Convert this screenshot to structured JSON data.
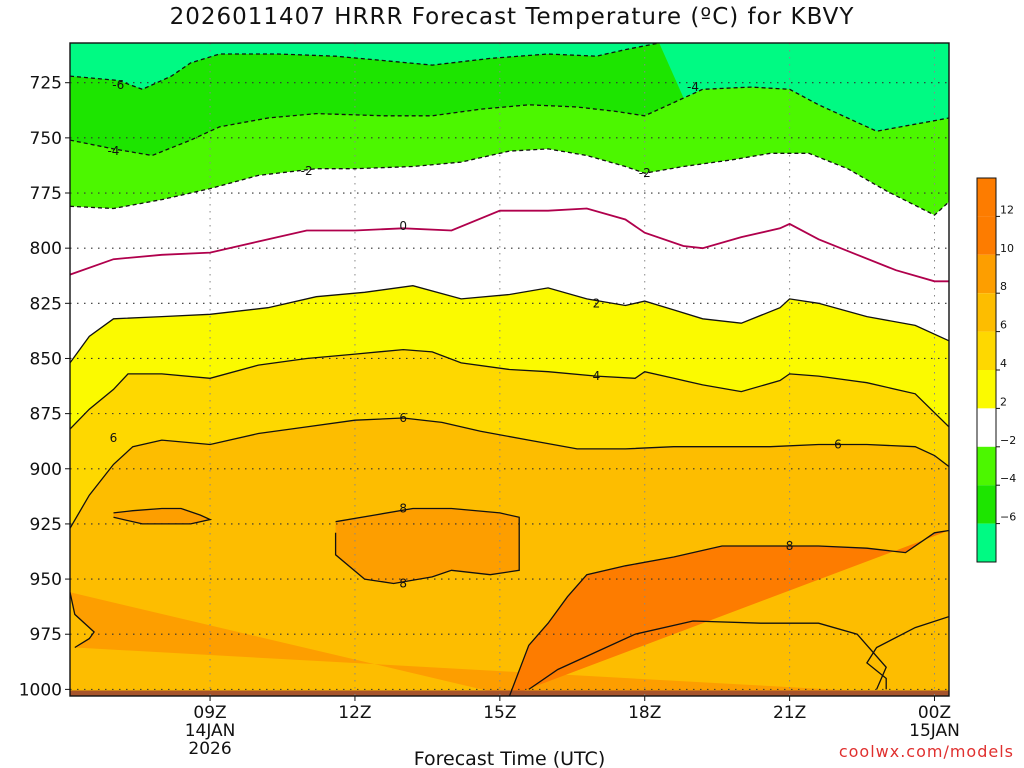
{
  "title": "2026011407 HRRR Forecast Temperature (ºC) for KBVY",
  "credit": "coolwx.com/models",
  "chart_data": {
    "type": "contour",
    "title": "2026011407 HRRR Forecast Temperature (ºC) for KBVY",
    "xlabel": "Forecast Time (UTC)",
    "ylabel": "",
    "x_range_hours_utc": [
      6.1,
      24.3
    ],
    "y_range_hpa": [
      1003,
      707
    ],
    "x_ticks": [
      {
        "hour": 9,
        "lines": [
          "09Z",
          "14JAN",
          "2026"
        ]
      },
      {
        "hour": 12,
        "lines": [
          "12Z"
        ]
      },
      {
        "hour": 15,
        "lines": [
          "15Z"
        ]
      },
      {
        "hour": 18,
        "lines": [
          "18Z"
        ]
      },
      {
        "hour": 21,
        "lines": [
          "21Z"
        ]
      },
      {
        "hour": 24,
        "lines": [
          "00Z",
          "15JAN"
        ]
      }
    ],
    "y_ticks": [
      725,
      750,
      775,
      800,
      825,
      850,
      875,
      900,
      925,
      950,
      975,
      1000
    ],
    "grid": true,
    "units": "ºC",
    "contour_levels": [
      -6,
      -4,
      -2,
      0,
      2,
      4,
      6,
      8,
      10
    ],
    "fill_colors": {
      "lt_-6": "#00fa83",
      "-6_-4": "#1de500",
      "-4_-2": "#4cf700",
      "-2_2": "#ffffff",
      "2_4": "#fbfa00",
      "4_6": "#fed800",
      "6_8": "#fdbd00",
      "8_10": "#fd9e00",
      "10_12": "#fd7c00",
      "ground": "#a6542c"
    },
    "isotherms": [
      {
        "level": -6,
        "style": "dashed",
        "points": [
          [
            6.1,
            722
          ],
          [
            7.1,
            724
          ],
          [
            7.6,
            728
          ],
          [
            8.2,
            722
          ],
          [
            8.6,
            716
          ],
          [
            9.2,
            712
          ],
          [
            10.4,
            712
          ],
          [
            11.6,
            713
          ],
          [
            12.6,
            715
          ],
          [
            13.6,
            717
          ],
          [
            14.8,
            714
          ],
          [
            16.0,
            712
          ],
          [
            17.0,
            713
          ],
          [
            17.6,
            710
          ],
          [
            18.3,
            707
          ]
        ]
      },
      {
        "level": -4,
        "style": "dashed",
        "points": [
          [
            6.1,
            751
          ],
          [
            7.0,
            755
          ],
          [
            7.8,
            758
          ],
          [
            8.6,
            751
          ],
          [
            9.2,
            745
          ],
          [
            10.2,
            741
          ],
          [
            11.2,
            739
          ],
          [
            12.6,
            740
          ],
          [
            13.6,
            740
          ],
          [
            14.6,
            737
          ],
          [
            15.6,
            735
          ],
          [
            16.6,
            736
          ],
          [
            17.4,
            738
          ],
          [
            18.0,
            740
          ],
          [
            18.6,
            734
          ],
          [
            19.2,
            728
          ],
          [
            20.2,
            727
          ],
          [
            21.0,
            728
          ],
          [
            21.6,
            735
          ],
          [
            22.8,
            747
          ],
          [
            23.8,
            743
          ],
          [
            24.3,
            741
          ]
        ]
      },
      {
        "level": -2,
        "style": "dashed",
        "points": [
          [
            6.1,
            781
          ],
          [
            7.0,
            782
          ],
          [
            8.0,
            778
          ],
          [
            9.0,
            773
          ],
          [
            10.0,
            767
          ],
          [
            11.2,
            764
          ],
          [
            12.0,
            764
          ],
          [
            13.2,
            763
          ],
          [
            14.2,
            761
          ],
          [
            15.2,
            756
          ],
          [
            16.0,
            755
          ],
          [
            16.8,
            758
          ],
          [
            17.6,
            763
          ],
          [
            18.0,
            766
          ],
          [
            18.8,
            763
          ],
          [
            19.8,
            760
          ],
          [
            20.6,
            757
          ],
          [
            21.4,
            757
          ],
          [
            22.2,
            764
          ],
          [
            23.0,
            774
          ],
          [
            24.0,
            785
          ],
          [
            24.3,
            779
          ]
        ]
      },
      {
        "level": 0,
        "style": "solid",
        "color": "#b0004c",
        "points": [
          [
            6.1,
            812
          ],
          [
            7.0,
            805
          ],
          [
            8.0,
            803
          ],
          [
            9.0,
            802
          ],
          [
            10.0,
            797
          ],
          [
            11.0,
            792
          ],
          [
            12.0,
            792
          ],
          [
            13.0,
            791
          ],
          [
            14.0,
            792
          ],
          [
            15.0,
            783
          ],
          [
            16.0,
            783
          ],
          [
            16.8,
            782
          ],
          [
            17.6,
            787
          ],
          [
            18.0,
            793
          ],
          [
            18.8,
            799
          ],
          [
            19.2,
            800
          ],
          [
            20.0,
            795
          ],
          [
            20.8,
            791
          ],
          [
            21.0,
            789
          ],
          [
            21.6,
            796
          ],
          [
            22.4,
            803
          ],
          [
            23.2,
            810
          ],
          [
            24.0,
            815
          ],
          [
            24.3,
            815
          ]
        ]
      },
      {
        "level": 2,
        "style": "solid",
        "points": [
          [
            6.1,
            852
          ],
          [
            6.5,
            840
          ],
          [
            7.0,
            832
          ],
          [
            8.0,
            831
          ],
          [
            9.0,
            830
          ],
          [
            10.2,
            827
          ],
          [
            11.2,
            822
          ],
          [
            12.2,
            820
          ],
          [
            13.2,
            817
          ],
          [
            14.2,
            823
          ],
          [
            15.2,
            821
          ],
          [
            16.0,
            818
          ],
          [
            16.8,
            823
          ],
          [
            17.6,
            826
          ],
          [
            18.0,
            824
          ],
          [
            18.6,
            828
          ],
          [
            19.2,
            832
          ],
          [
            20.0,
            834
          ],
          [
            20.8,
            827
          ],
          [
            21.0,
            823
          ],
          [
            21.6,
            825
          ],
          [
            22.6,
            831
          ],
          [
            23.6,
            835
          ],
          [
            24.3,
            842
          ]
        ]
      },
      {
        "level": 4,
        "style": "solid",
        "points": [
          [
            6.1,
            882
          ],
          [
            6.5,
            873
          ],
          [
            7.0,
            864
          ],
          [
            7.3,
            857
          ],
          [
            8.0,
            857
          ],
          [
            9.0,
            859
          ],
          [
            10.0,
            853
          ],
          [
            11.0,
            850
          ],
          [
            12.0,
            848
          ],
          [
            13.0,
            846
          ],
          [
            13.6,
            847
          ],
          [
            14.2,
            852
          ],
          [
            15.2,
            855
          ],
          [
            16.0,
            856
          ],
          [
            17.0,
            858
          ],
          [
            17.8,
            859
          ],
          [
            18.0,
            856
          ],
          [
            18.6,
            859
          ],
          [
            19.2,
            862
          ],
          [
            20.0,
            865
          ],
          [
            20.8,
            860
          ],
          [
            21.0,
            857
          ],
          [
            21.6,
            858
          ],
          [
            22.6,
            861
          ],
          [
            23.6,
            866
          ],
          [
            24.3,
            881
          ]
        ]
      },
      {
        "level": 6,
        "style": "solid",
        "points": [
          [
            6.1,
            927
          ],
          [
            6.5,
            912
          ],
          [
            7.0,
            898
          ],
          [
            7.4,
            890
          ],
          [
            8.0,
            887
          ],
          [
            9.0,
            889
          ],
          [
            10.0,
            884
          ],
          [
            11.0,
            881
          ],
          [
            12.0,
            878
          ],
          [
            13.0,
            877
          ],
          [
            13.8,
            879
          ],
          [
            14.6,
            883
          ],
          [
            15.6,
            887
          ],
          [
            16.6,
            891
          ],
          [
            17.6,
            891
          ],
          [
            18.6,
            890
          ],
          [
            19.6,
            890
          ],
          [
            20.6,
            890
          ],
          [
            21.6,
            889
          ],
          [
            22.6,
            889
          ],
          [
            23.6,
            890
          ],
          [
            24.0,
            894
          ],
          [
            24.3,
            899
          ]
        ]
      },
      {
        "level": 8,
        "style": "solid",
        "points": [
          [
            7.0,
            920
          ],
          [
            7.4,
            919
          ],
          [
            8.0,
            918
          ],
          [
            8.4,
            918
          ],
          [
            8.8,
            921
          ],
          [
            9.0,
            923
          ],
          [
            8.6,
            925
          ],
          [
            8.2,
            925
          ],
          [
            7.6,
            925
          ],
          [
            7.0,
            922
          ]
        ]
      },
      {
        "level": 8,
        "style": "solid",
        "points": [
          [
            11.6,
            924
          ],
          [
            12.4,
            921
          ],
          [
            13.2,
            918
          ],
          [
            14.0,
            918
          ],
          [
            15.0,
            920
          ],
          [
            15.4,
            922
          ],
          [
            15.4,
            946
          ],
          [
            14.8,
            948
          ],
          [
            14.0,
            946
          ],
          [
            13.6,
            949
          ],
          [
            12.8,
            952
          ],
          [
            12.2,
            950
          ],
          [
            11.6,
            939
          ],
          [
            11.6,
            929
          ]
        ]
      },
      {
        "level": 8,
        "style": "solid",
        "points": [
          [
            6.1,
            956
          ],
          [
            6.2,
            966
          ],
          [
            6.6,
            974
          ],
          [
            6.5,
            977
          ],
          [
            6.2,
            981
          ]
        ]
      },
      {
        "level": 8,
        "style": "solid",
        "points": [
          [
            15.2,
            1003
          ],
          [
            15.6,
            980
          ],
          [
            16.0,
            970
          ],
          [
            16.4,
            958
          ],
          [
            16.8,
            948
          ],
          [
            17.6,
            944
          ],
          [
            18.6,
            940
          ],
          [
            19.6,
            935
          ],
          [
            20.6,
            935
          ],
          [
            21.6,
            935
          ],
          [
            22.6,
            936
          ],
          [
            23.4,
            938
          ],
          [
            24.0,
            929
          ],
          [
            24.3,
            928
          ]
        ]
      },
      {
        "level": 10,
        "style": "solid",
        "points": [
          [
            15.6,
            1000
          ],
          [
            16.2,
            991
          ],
          [
            17.0,
            983
          ],
          [
            17.8,
            975
          ],
          [
            19.0,
            969
          ],
          [
            20.4,
            970
          ],
          [
            21.6,
            970
          ],
          [
            22.4,
            975
          ],
          [
            23.0,
            990
          ],
          [
            22.8,
            1000
          ]
        ]
      },
      {
        "level": 8,
        "style": "solid",
        "points": [
          [
            24.3,
            967
          ],
          [
            23.6,
            972
          ],
          [
            22.8,
            981
          ],
          [
            22.6,
            988
          ],
          [
            23.0,
            995
          ],
          [
            23.0,
            1000
          ]
        ]
      }
    ],
    "contour_labels": [
      {
        "level": -6,
        "text": "-6",
        "hour": 7.1,
        "hpa": 726
      },
      {
        "level": -4,
        "text": "-4",
        "hour": 19.0,
        "hpa": 727
      },
      {
        "level": -4,
        "text": "-4",
        "hour": 7.0,
        "hpa": 756
      },
      {
        "level": -2,
        "text": "-2",
        "hour": 11.0,
        "hpa": 765
      },
      {
        "level": -2,
        "text": "-2",
        "hour": 18.0,
        "hpa": 766
      },
      {
        "level": 0,
        "text": "0",
        "hour": 13.0,
        "hpa": 790
      },
      {
        "level": 2,
        "text": "2",
        "hour": 17.0,
        "hpa": 825
      },
      {
        "level": 4,
        "text": "4",
        "hour": 17.0,
        "hpa": 858
      },
      {
        "level": 6,
        "text": "6",
        "hour": 7.0,
        "hpa": 886
      },
      {
        "level": 6,
        "text": "6",
        "hour": 13.0,
        "hpa": 877
      },
      {
        "level": 6,
        "text": "6",
        "hour": 22.0,
        "hpa": 889
      },
      {
        "level": 8,
        "text": "8",
        "hour": 13.0,
        "hpa": 918
      },
      {
        "level": 8,
        "text": "8",
        "hour": 13.0,
        "hpa": 952
      },
      {
        "level": 8,
        "text": "8",
        "hour": 21.0,
        "hpa": 935
      }
    ],
    "colorbar": {
      "ticks": [
        "12",
        "10",
        "8",
        "6",
        "4",
        "2",
        "−2",
        "−4",
        "−6"
      ],
      "colors": [
        "#fd7c00",
        "#fd7c00",
        "#fd9e00",
        "#fdbd00",
        "#fed800",
        "#fbfa00",
        "#ffffff",
        "#4cf700",
        "#1de500",
        "#00fa83"
      ]
    }
  }
}
